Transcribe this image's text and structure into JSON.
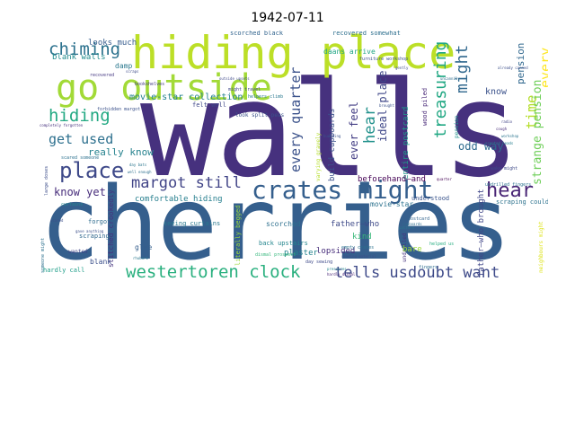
{
  "title": "1942-07-11",
  "words": [
    {
      "id": "walls",
      "text": "walls",
      "color": "#46317e"
    },
    {
      "id": "cherries",
      "text": "cherries",
      "color": "#355f8d"
    },
    {
      "id": "hiding-place",
      "text": "hiding place",
      "color": "#bcdf27"
    },
    {
      "id": "go-outside",
      "text": "go outside",
      "color": "#a2da37"
    },
    {
      "id": "crates-might",
      "text": "crates might",
      "color": "#355f8d"
    },
    {
      "id": "hear-1",
      "text": "hear",
      "color": "#482475"
    },
    {
      "id": "westertoren-clock",
      "text": "westertoren clock",
      "color": "#2ab07f"
    },
    {
      "id": "tells-usdoubt-want",
      "text": "tells usdoubt want",
      "color": "#3e4a89"
    },
    {
      "id": "place",
      "text": "place",
      "color": "#3e4989"
    },
    {
      "id": "margot-still",
      "text": "margot still",
      "color": "#414487"
    },
    {
      "id": "chiming",
      "text": "chiming",
      "color": "#2c728e"
    },
    {
      "id": "hiding",
      "text": "hiding",
      "color": "#23a983"
    },
    {
      "id": "get-used",
      "text": "get used",
      "color": "#2d708e"
    },
    {
      "id": "every-quarter",
      "text": "every quarter",
      "color": "#3b528b"
    },
    {
      "id": "treasuring",
      "text": "treasuring",
      "color": "#22a884"
    },
    {
      "id": "might",
      "text": "might",
      "color": "#31688e"
    },
    {
      "id": "hear-2",
      "text": "hear",
      "color": "#21918c"
    },
    {
      "id": "time",
      "text": "time",
      "color": "#b5de2b"
    },
    {
      "id": "every",
      "text": "every",
      "color": "#fde725"
    },
    {
      "id": "ever-feel",
      "text": "ever feel",
      "color": "#433d84"
    },
    {
      "id": "ideal-place",
      "text": "ideal place",
      "color": "#3f4788"
    },
    {
      "id": "odd-way",
      "text": "odd way",
      "color": "#2f6b8e"
    },
    {
      "id": "know",
      "text": "know",
      "color": "#3b528b"
    },
    {
      "id": "pension",
      "text": "pension",
      "color": "#31688e"
    },
    {
      "id": "strange-pension",
      "text": "strange pension",
      "color": "#6ece58"
    },
    {
      "id": "really-know",
      "text": "really know",
      "color": "#26828e"
    },
    {
      "id": "know-yet",
      "text": "know yet",
      "color": "#472d7b"
    },
    {
      "id": "comfortable-hiding",
      "text": "comfortable hiding",
      "color": "#277f8e"
    },
    {
      "id": "lopsided",
      "text": "lopsided",
      "color": "#472d7b"
    },
    {
      "id": "plaster",
      "text": "plaster",
      "color": "#25848e"
    },
    {
      "id": "kind",
      "text": "kind",
      "color": "#37b878"
    },
    {
      "id": "bare",
      "text": "bare",
      "color": "#9bd93c"
    },
    {
      "id": "glue",
      "text": "glue",
      "color": "#355f8d"
    },
    {
      "id": "blank",
      "text": "blank",
      "color": "#3c508b"
    },
    {
      "id": "movie-star-collection",
      "text": "movie-star collection",
      "color": "#26828e"
    },
    {
      "id": "looks-much",
      "text": "looks much",
      "color": "#365c8d"
    },
    {
      "id": "blank-walls",
      "text": "blank walls",
      "color": "#228c8d"
    },
    {
      "id": "damp",
      "text": "damp",
      "color": "#2a788e"
    },
    {
      "id": "scorched-black",
      "text": "scorched black",
      "color": "#32648e"
    },
    {
      "id": "recovered-somewhat",
      "text": "recovered somewhat",
      "color": "#2e6f8e"
    },
    {
      "id": "daans-arrive",
      "text": "daans arrive",
      "color": "#21a685"
    },
    {
      "id": "beforehand-and",
      "text": "beforehand—and",
      "color": "#440154"
    },
    {
      "id": "entire-postcard",
      "text": "entire postcard",
      "color": "#1f9a8a"
    },
    {
      "id": "build-cupboards",
      "text": "build cupboards",
      "color": "#3b518b"
    },
    {
      "id": "wood-piled",
      "text": "wood piled",
      "color": "#482878"
    },
    {
      "id": "understood",
      "text": "understood",
      "color": "#3a548c"
    },
    {
      "id": "father-who-1",
      "text": "father—who",
      "color": "#3e4a89"
    },
    {
      "id": "father-who-2",
      "text": "father—who brought",
      "color": "#404688"
    },
    {
      "id": "movie-star",
      "text": "movie-star",
      "color": "#2c728e"
    },
    {
      "id": "scraping-could",
      "text": "scraping could",
      "color": "#2c728e"
    },
    {
      "id": "scorched",
      "text": "scorched",
      "color": "#2d708e"
    },
    {
      "id": "felt-well",
      "text": "felt well",
      "color": "#3f4788"
    },
    {
      "id": "back-upstairs",
      "text": "back upstairs",
      "color": "#24868e"
    },
    {
      "id": "literally-begged",
      "text": "literally begged",
      "color": "#9bd93c"
    },
    {
      "id": "seeing-curtains",
      "text": "seeing curtains",
      "color": "#2a788e"
    },
    {
      "id": "stitched-crookedly",
      "text": "stitched crookedly",
      "color": "#46337e"
    },
    {
      "id": "hardly-call",
      "text": "hardly call",
      "color": "#1f9e89"
    },
    {
      "id": "scraping",
      "text": "scraping",
      "color": "#31688e"
    },
    {
      "id": "forgot",
      "text": "forgot",
      "color": "#2f6c8e"
    },
    {
      "id": "wanted",
      "text": "wanted",
      "color": "#404588"
    },
    {
      "id": "varying-gravely",
      "text": "varying gravely",
      "color": "#b5de2b"
    },
    {
      "id": "look-split-peas",
      "text": "look split-peas",
      "color": "#3b528b"
    },
    {
      "id": "might-travel",
      "text": "might travel",
      "color": "#3f4788"
    },
    {
      "id": "helpers-climb",
      "text": "helpers climb",
      "color": "#2a788e"
    },
    {
      "id": "day-sewing",
      "text": "day sewing",
      "color": "#3e4989"
    },
    {
      "id": "dismal-prospect",
      "text": "dismal prospect",
      "color": "#32b67a"
    },
    {
      "id": "empty-crates",
      "text": "empty crates",
      "color": "#2c728e"
    },
    {
      "id": "helped-us",
      "text": "helped us",
      "color": "#26ad81"
    },
    {
      "id": "reading-material",
      "text": "reading material",
      "color": "#3d4d8a"
    },
    {
      "id": "undrilled",
      "text": "undrilled",
      "color": "#46327e"
    },
    {
      "id": "pattern",
      "text": "pattern",
      "color": "#2a788e"
    },
    {
      "id": "postcard",
      "text": "postcard",
      "color": "#32648e"
    },
    {
      "id": "cupboards",
      "text": "cupboards",
      "color": "#2e6e8e"
    },
    {
      "id": "bookshelves",
      "text": "bookshelves",
      "color": "#443b84"
    },
    {
      "id": "recovered",
      "text": "recovered",
      "color": "#453882"
    },
    {
      "id": "furniture-workshop",
      "text": "furniture workshop",
      "color": "#3c508b"
    },
    {
      "id": "pressures",
      "text": "pressures",
      "color": "#24868e"
    },
    {
      "id": "hardly-dismal",
      "text": "hardly dismal",
      "color": "#482475"
    },
    {
      "id": "brought",
      "text": "brought",
      "color": "#3b518b"
    },
    {
      "id": "fingers",
      "text": "fingers",
      "color": "#2e6d8e"
    },
    {
      "id": "neighbours-might",
      "text": "neighbours might",
      "color": "#dde318"
    },
    {
      "id": "undrilled-fingers",
      "text": "undrilled fingers",
      "color": "#2c738e"
    },
    {
      "id": "wake-might",
      "text": "wake might",
      "color": "#3e4a89"
    },
    {
      "id": "scented-heads",
      "text": "scented heads",
      "color": "#277e8e"
    },
    {
      "id": "already-canned",
      "text": "already canned",
      "color": "#3c4f8a"
    },
    {
      "id": "radio",
      "text": "radio",
      "color": "#414487"
    },
    {
      "id": "cough",
      "text": "cough",
      "color": "#472c7a"
    },
    {
      "id": "workshop",
      "text": "workshop",
      "color": "#2b748e"
    },
    {
      "id": "uncannily",
      "text": "uncannily",
      "color": "#2e6e8e"
    },
    {
      "id": "someone-might",
      "text": "someone might",
      "color": "#2d708e"
    },
    {
      "id": "forbidden-margot",
      "text": "forbidden margot",
      "color": "#3b528b"
    },
    {
      "id": "large-doses",
      "text": "large doses",
      "color": "#3d4e8a"
    },
    {
      "id": "day-bats",
      "text": "day bats",
      "color": "#2b758e"
    },
    {
      "id": "well-enough",
      "text": "well enough",
      "color": "#2e6f8e"
    },
    {
      "id": "curtains",
      "text": "curtains",
      "color": "#23898e"
    },
    {
      "id": "scared-someone",
      "text": "scared someone",
      "color": "#2c718e"
    },
    {
      "id": "gave-anything",
      "text": "gave anything",
      "color": "#3c4f8a"
    },
    {
      "id": "scraps",
      "text": "scraps",
      "color": "#3e4c8a"
    },
    {
      "id": "rhubarb",
      "text": "rhubarb",
      "color": "#2a778e"
    },
    {
      "id": "outside-upsets",
      "text": "outside upsets",
      "color": "#3e4989"
    },
    {
      "id": "completely-forgotten",
      "text": "completely forgotten",
      "color": "#46327e"
    },
    {
      "id": "scared",
      "text": "scared",
      "color": "#3d4e8a"
    },
    {
      "id": "quarter",
      "text": "quarter",
      "color": "#440154"
    },
    {
      "id": "gently",
      "text": "gently",
      "color": "#3e4a89"
    },
    {
      "id": "building",
      "text": "building",
      "color": "#3b518b"
    },
    {
      "id": "pension-2",
      "text": "pension",
      "color": "#21918c"
    }
  ]
}
